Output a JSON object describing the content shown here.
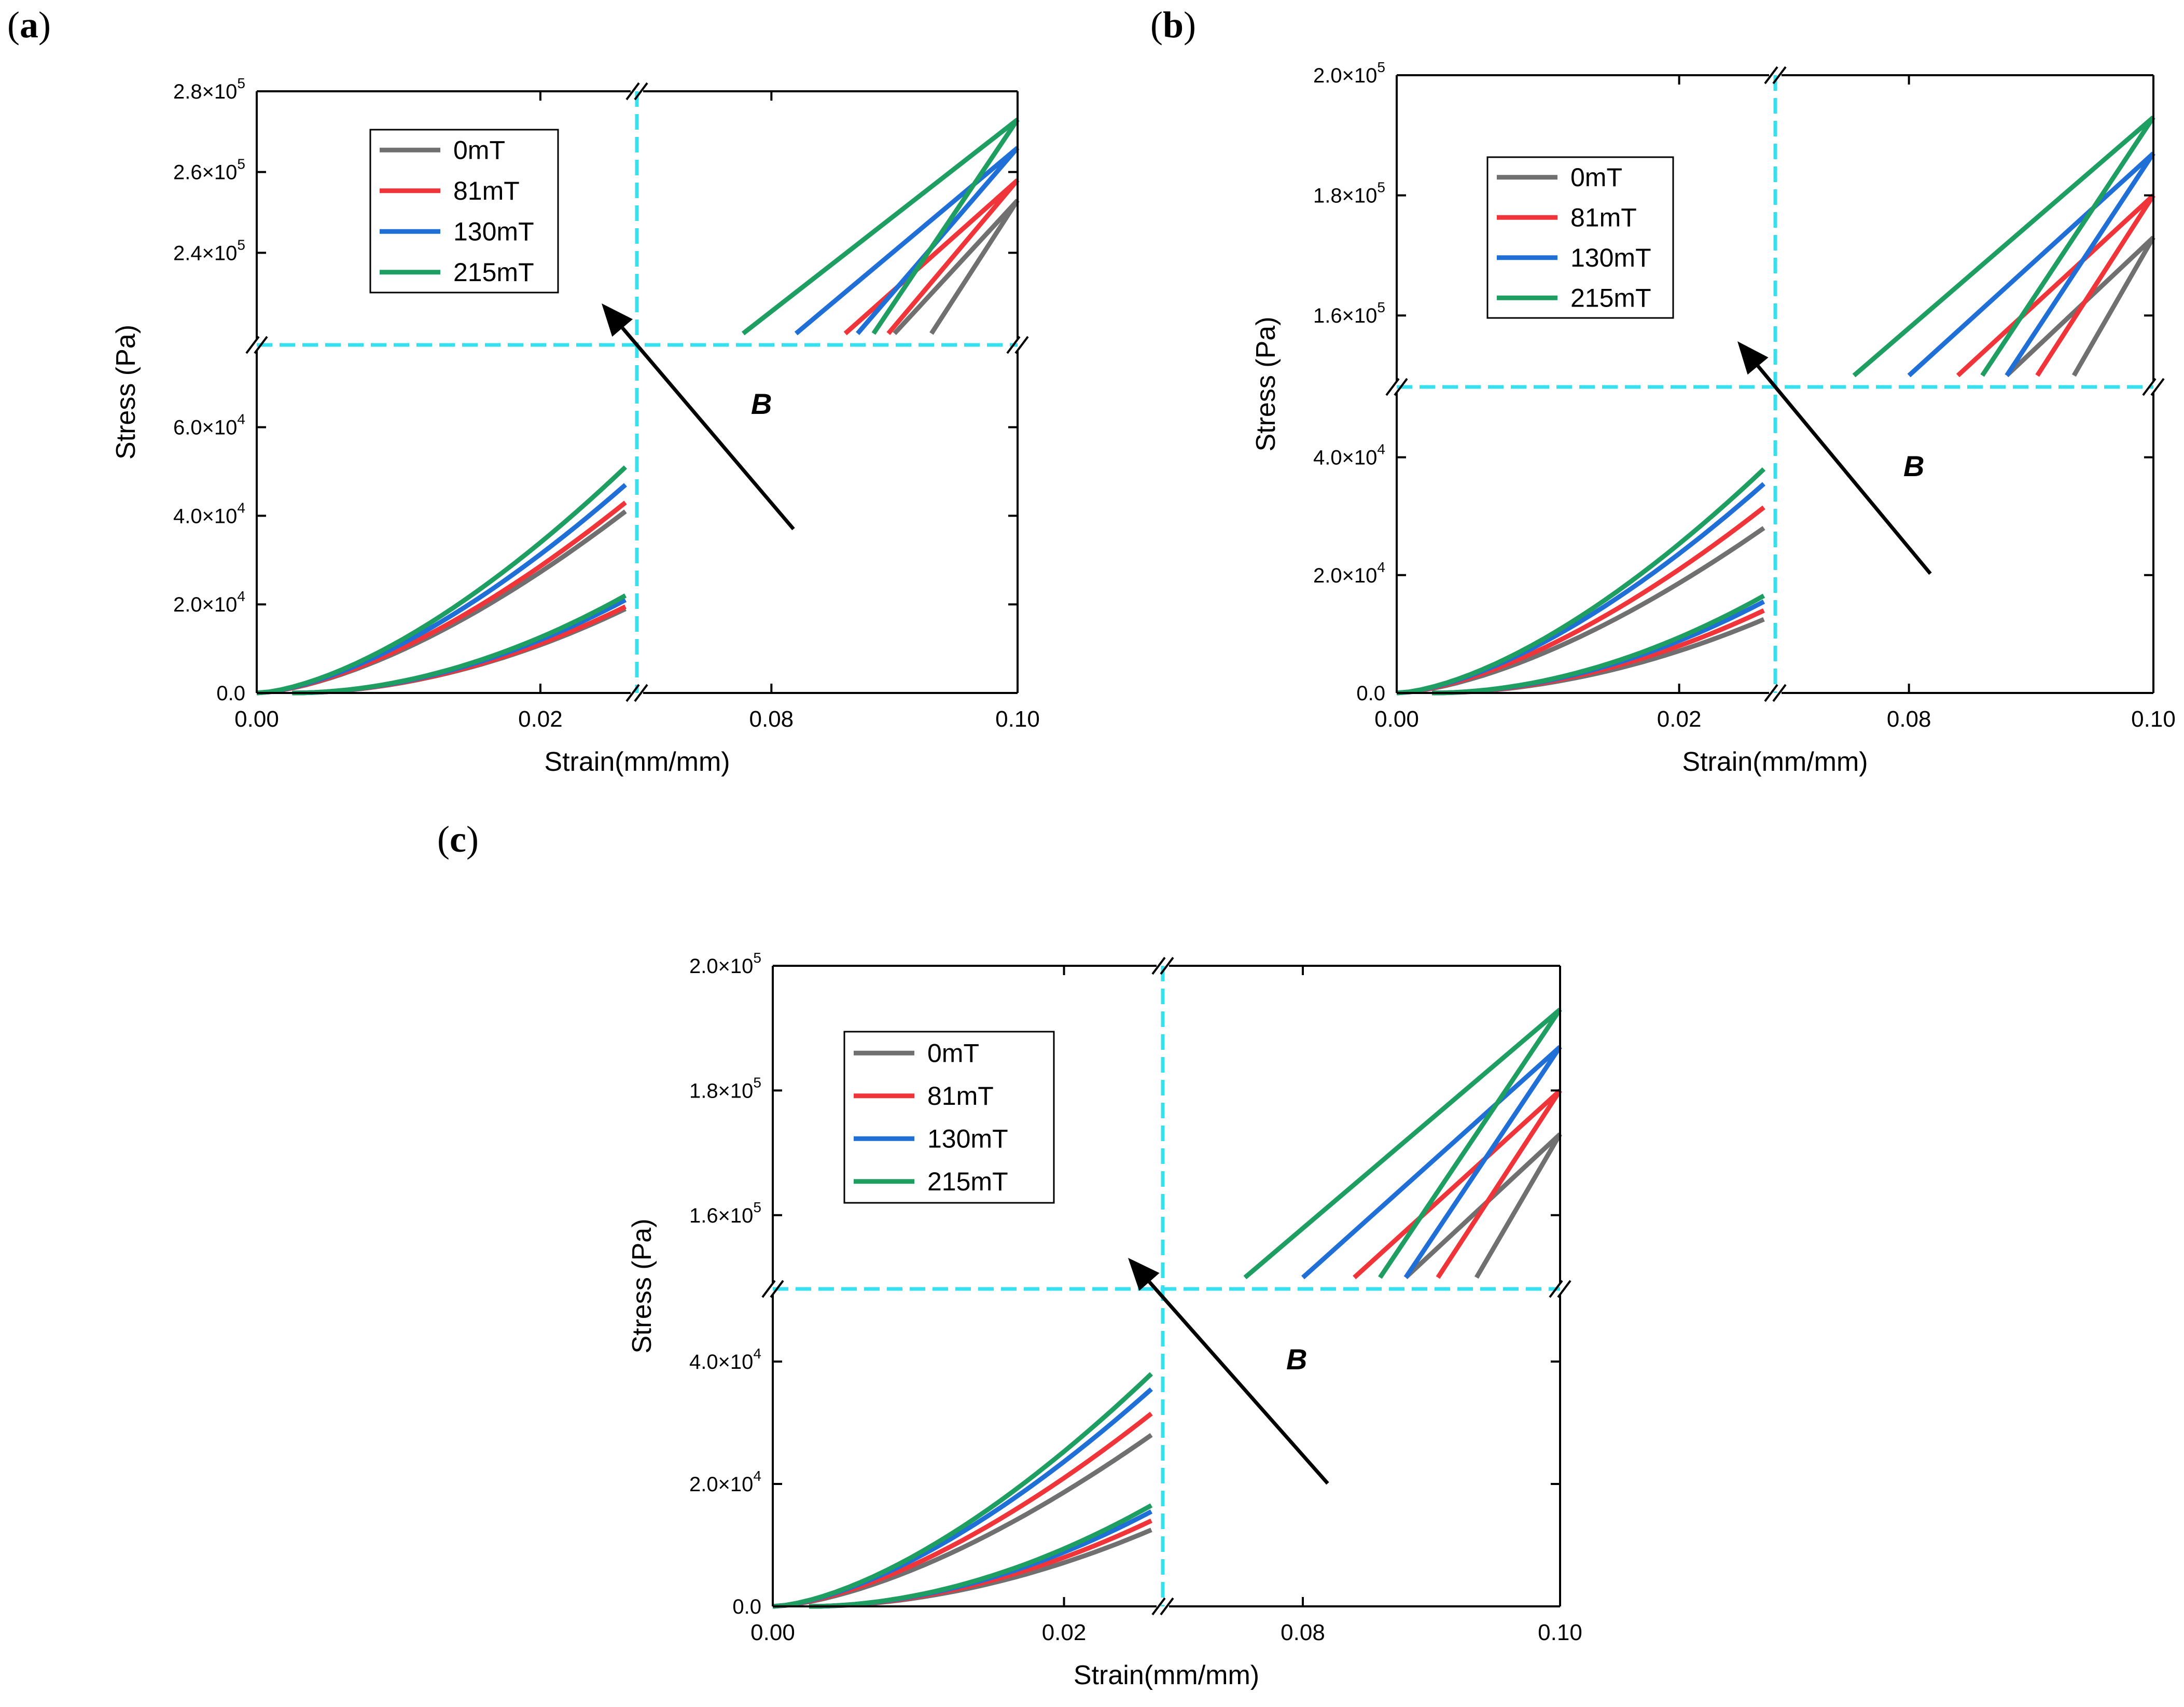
{
  "figure": {
    "colors": {
      "0mT": "#707070",
      "81mT": "#f0353a",
      "130mT": "#1f6fd6",
      "215mT": "#1f9e62",
      "guide": "#36e0ee",
      "axis": "#000000"
    },
    "arrow_label": "B"
  },
  "chart_data": [
    {
      "panel": "a",
      "type": "line",
      "panel_label_open": "(",
      "panel_label_letter": "a",
      "panel_label_close": ")",
      "xlabel": "Strain(mm/mm)",
      "ylabel": "Stress (Pa)",
      "x_break": {
        "lower_segment": [
          0.0,
          0.026
        ],
        "upper_segment": [
          0.07,
          0.1
        ]
      },
      "y_break": {
        "lower_segment": [
          0,
          76000
        ],
        "upper_segment": [
          220000,
          280000
        ]
      },
      "x_ticks": [
        {
          "value": 0.0,
          "label": "0.00"
        },
        {
          "value": 0.02,
          "label": "0.02"
        },
        {
          "value": 0.08,
          "label": "0.08"
        },
        {
          "value": 0.1,
          "label": "0.10"
        }
      ],
      "y_ticks": [
        {
          "value": 0,
          "mant": "0.0",
          "exp": ""
        },
        {
          "value": 20000,
          "mant": "2.0×10",
          "exp": "4"
        },
        {
          "value": 40000,
          "mant": "4.0×10",
          "exp": "4"
        },
        {
          "value": 60000,
          "mant": "6.0×10",
          "exp": "4"
        },
        {
          "value": 240000,
          "mant": "2.4×10",
          "exp": "5"
        },
        {
          "value": 260000,
          "mant": "2.6×10",
          "exp": "5"
        },
        {
          "value": 280000,
          "mant": "2.8×10",
          "exp": "5"
        }
      ],
      "legend": [
        "0mT",
        "81mT",
        "130mT",
        "215mT"
      ],
      "series": [
        {
          "name": "0mT",
          "lower_loading_end": 41000,
          "lower_unloading_end": 19000,
          "upper_start_x": 0.09,
          "upper_top_y": 253000,
          "upper_unload_start_x": 0.093
        },
        {
          "name": "81mT",
          "lower_loading_end": 43000,
          "lower_unloading_end": 19500,
          "upper_start_x": 0.086,
          "upper_top_y": 258000,
          "upper_unload_start_x": 0.0895
        },
        {
          "name": "130mT",
          "lower_loading_end": 47000,
          "lower_unloading_end": 21000,
          "upper_start_x": 0.082,
          "upper_top_y": 266000,
          "upper_unload_start_x": 0.087
        },
        {
          "name": "215mT",
          "lower_loading_end": 51000,
          "lower_unloading_end": 22000,
          "upper_start_x": 0.0777,
          "upper_top_y": 273000,
          "upper_unload_start_x": 0.0883
        }
      ]
    },
    {
      "panel": "b",
      "type": "line",
      "panel_label_open": "(",
      "panel_label_letter": "b",
      "panel_label_close": ")",
      "xlabel": "Strain(mm/mm)",
      "ylabel": "Stress (Pa)",
      "x_break": {
        "lower_segment": [
          0.0,
          0.026
        ],
        "upper_segment": [
          0.07,
          0.1
        ]
      },
      "y_break": {
        "lower_segment": [
          0,
          50000
        ],
        "upper_segment": [
          150000,
          200000
        ]
      },
      "x_ticks": [
        {
          "value": 0.0,
          "label": "0.00"
        },
        {
          "value": 0.02,
          "label": "0.02"
        },
        {
          "value": 0.08,
          "label": "0.08"
        },
        {
          "value": 0.1,
          "label": "0.10"
        }
      ],
      "y_ticks": [
        {
          "value": 0,
          "mant": "0.0",
          "exp": ""
        },
        {
          "value": 20000,
          "mant": "2.0×10",
          "exp": "4"
        },
        {
          "value": 40000,
          "mant": "4.0×10",
          "exp": "4"
        },
        {
          "value": 160000,
          "mant": "1.6×10",
          "exp": "5"
        },
        {
          "value": 180000,
          "mant": "1.8×10",
          "exp": "5"
        },
        {
          "value": 200000,
          "mant": "2.0×10",
          "exp": "5"
        }
      ],
      "legend": [
        "0mT",
        "81mT",
        "130mT",
        "215mT"
      ],
      "series": [
        {
          "name": "0mT",
          "lower_loading_end": 28000,
          "lower_unloading_end": 12500,
          "upper_start_x": 0.088,
          "upper_top_y": 173000,
          "upper_unload_start_x": 0.0935
        },
        {
          "name": "81mT",
          "lower_loading_end": 31500,
          "lower_unloading_end": 14000,
          "upper_start_x": 0.084,
          "upper_top_y": 180000,
          "upper_unload_start_x": 0.0905
        },
        {
          "name": "130mT",
          "lower_loading_end": 35500,
          "lower_unloading_end": 15500,
          "upper_start_x": 0.08,
          "upper_top_y": 187000,
          "upper_unload_start_x": 0.088
        },
        {
          "name": "215mT",
          "lower_loading_end": 38000,
          "lower_unloading_end": 16500,
          "upper_start_x": 0.0755,
          "upper_top_y": 193000,
          "upper_unload_start_x": 0.086
        }
      ]
    },
    {
      "panel": "c",
      "type": "line",
      "panel_label_open": "(",
      "panel_label_letter": "c",
      "panel_label_close": ")",
      "xlabel": "Strain(mm/mm)",
      "ylabel": "Stress (Pa)",
      "x_break": {
        "lower_segment": [
          0.0,
          0.026
        ],
        "upper_segment": [
          0.07,
          0.1
        ]
      },
      "y_break": {
        "lower_segment": [
          0,
          50000
        ],
        "upper_segment": [
          150000,
          200000
        ]
      },
      "x_ticks": [
        {
          "value": 0.0,
          "label": "0.00"
        },
        {
          "value": 0.02,
          "label": "0.02"
        },
        {
          "value": 0.08,
          "label": "0.08"
        },
        {
          "value": 0.1,
          "label": "0.10"
        }
      ],
      "y_ticks": [
        {
          "value": 0,
          "mant": "0.0",
          "exp": ""
        },
        {
          "value": 20000,
          "mant": "2.0×10",
          "exp": "4"
        },
        {
          "value": 40000,
          "mant": "4.0×10",
          "exp": "4"
        },
        {
          "value": 160000,
          "mant": "1.6×10",
          "exp": "5"
        },
        {
          "value": 180000,
          "mant": "1.8×10",
          "exp": "5"
        },
        {
          "value": 200000,
          "mant": "2.0×10",
          "exp": "5"
        }
      ],
      "legend": [
        "0mT",
        "81mT",
        "130mT",
        "215mT"
      ],
      "series": [
        {
          "name": "0mT",
          "lower_loading_end": 28000,
          "lower_unloading_end": 12500,
          "upper_start_x": 0.088,
          "upper_top_y": 173000,
          "upper_unload_start_x": 0.0935
        },
        {
          "name": "81mT",
          "lower_loading_end": 31500,
          "lower_unloading_end": 14000,
          "upper_start_x": 0.084,
          "upper_top_y": 180000,
          "upper_unload_start_x": 0.0905
        },
        {
          "name": "130mT",
          "lower_loading_end": 35500,
          "lower_unloading_end": 15500,
          "upper_start_x": 0.08,
          "upper_top_y": 187000,
          "upper_unload_start_x": 0.088
        },
        {
          "name": "215mT",
          "lower_loading_end": 38000,
          "lower_unloading_end": 16500,
          "upper_start_x": 0.0755,
          "upper_top_y": 193000,
          "upper_unload_start_x": 0.086
        }
      ]
    }
  ]
}
